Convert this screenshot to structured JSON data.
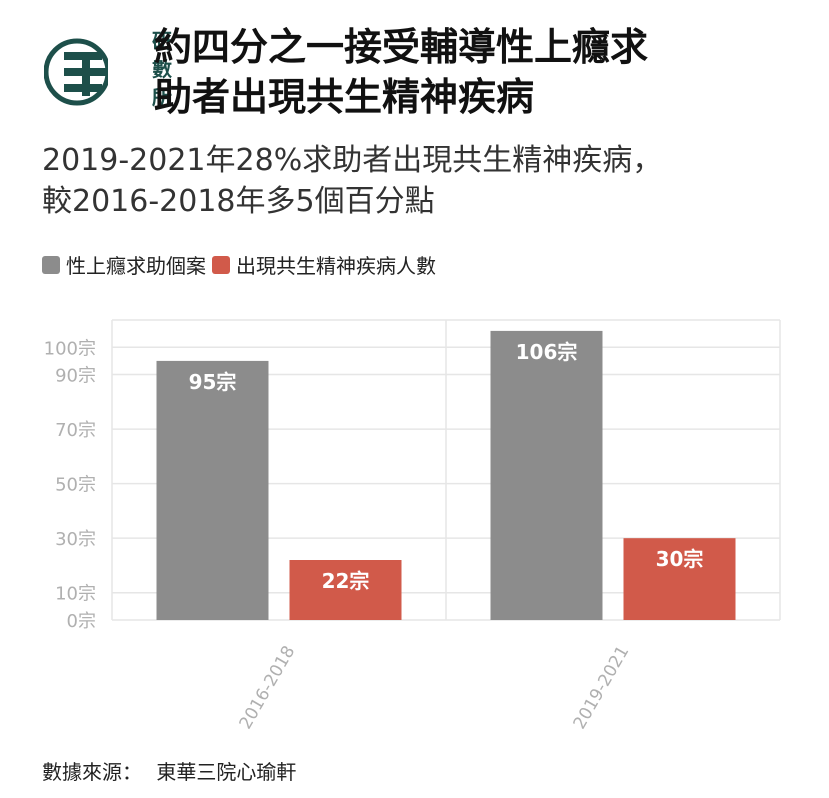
{
  "logo": {
    "icon": "research-institute-logo-icon",
    "text": [
      "研",
      "數",
      "所"
    ]
  },
  "title_lines": [
    "約四分之一接受輔導性上癮求",
    "助者出現共生精神疾病"
  ],
  "subtitle_lines": [
    "2019-2021年28%求助者出現共生精神疾病，",
    "較2016-2018年多5個百分點"
  ],
  "source": {
    "label": "數據來源：",
    "value": "東華三院心瑜軒"
  },
  "chart_data": {
    "type": "bar",
    "categories": [
      "2016-2018",
      "2019-2021"
    ],
    "series": [
      {
        "name": "性上癮求助個案",
        "values": [
          95,
          106
        ],
        "labels": [
          "95宗",
          "106宗"
        ],
        "color": "#8c8c8c"
      },
      {
        "name": "出現共生精神疾病人數",
        "values": [
          22,
          30
        ],
        "labels": [
          "22宗",
          "30宗"
        ],
        "color": "#d15a4a"
      }
    ],
    "y_ticks": [
      {
        "value": 0,
        "label": "0宗"
      },
      {
        "value": 10,
        "label": "10宗"
      },
      {
        "value": 30,
        "label": "30宗"
      },
      {
        "value": 50,
        "label": "50宗"
      },
      {
        "value": 70,
        "label": "70宗"
      },
      {
        "value": 90,
        "label": "90宗"
      },
      {
        "value": 100,
        "label": "100宗"
      }
    ],
    "ylim": [
      0,
      110
    ],
    "grid": true,
    "legend_position": "top-left"
  }
}
